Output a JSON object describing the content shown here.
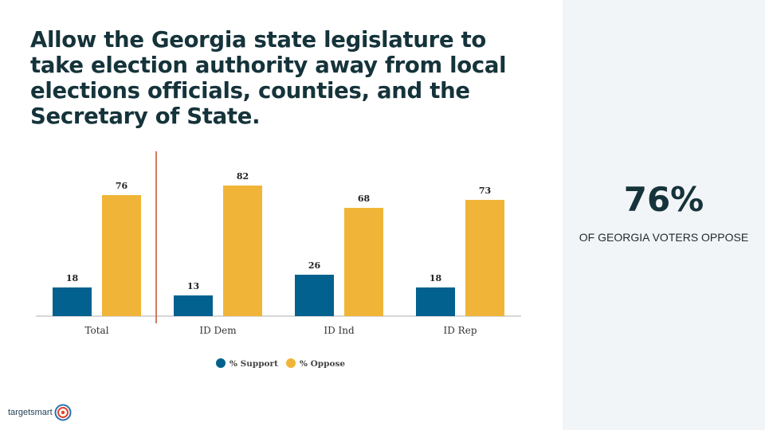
{
  "title": "Allow the Georgia state legislature to take election authority away from local elections officials, counties, and the Secretary of State.",
  "highlight": {
    "value": "76%",
    "caption": "OF GEORGIA VOTERS OPPOSE"
  },
  "logo": {
    "text": "targetsmart",
    "icon": "target-icon"
  },
  "chart_data": {
    "type": "bar",
    "categories": [
      "Total",
      "ID Dem",
      "ID Ind",
      "ID Rep"
    ],
    "series": [
      {
        "name": "% Support",
        "color": "#02618f",
        "values": [
          18,
          13,
          26,
          18
        ]
      },
      {
        "name": "% Oppose",
        "color": "#f0b538",
        "values": [
          76,
          82,
          68,
          73
        ]
      }
    ],
    "ylim": [
      0,
      90
    ],
    "legend": "bottom-center",
    "grid": false,
    "separator_after_category": "Total",
    "separator_color": "#c0502d"
  }
}
